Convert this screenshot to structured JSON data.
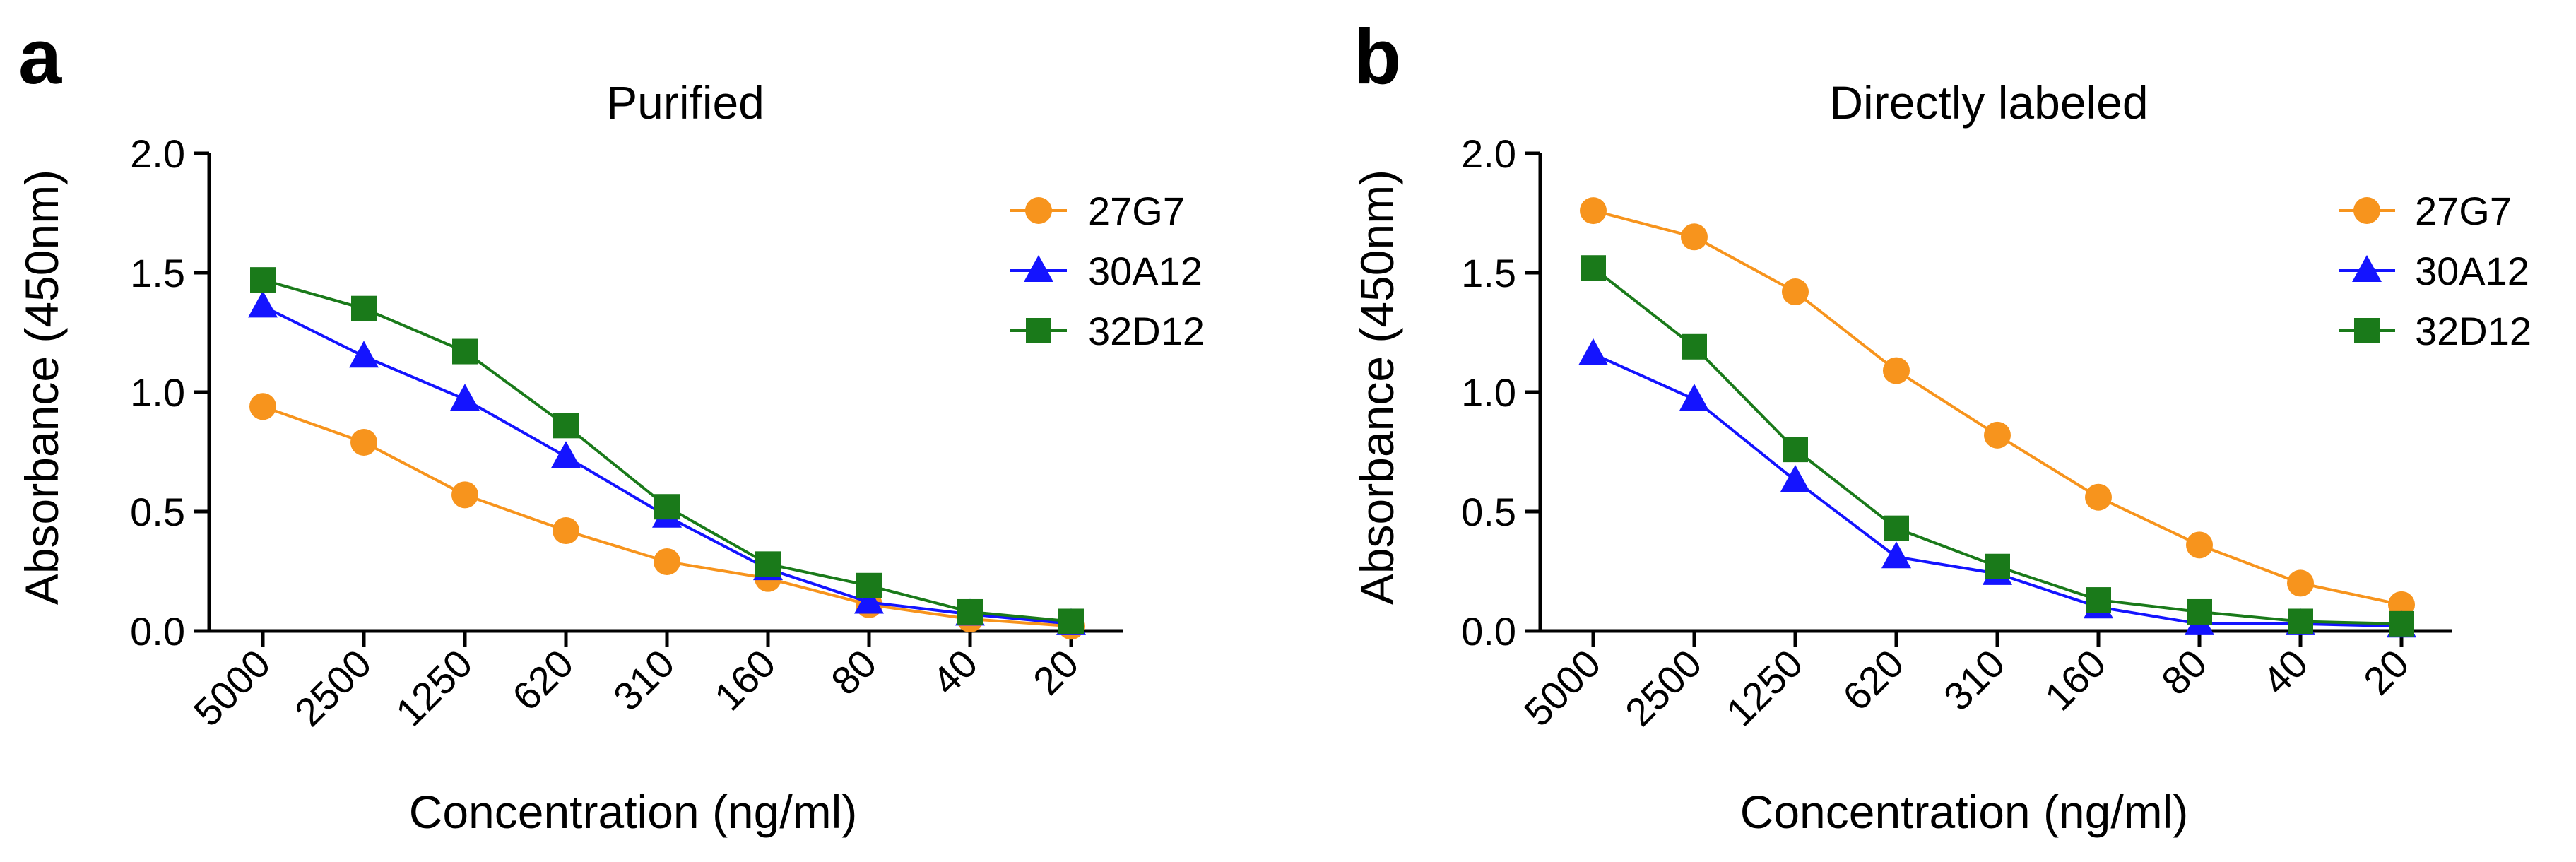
{
  "colors": {
    "27G7": "#f7941d",
    "30A12": "#1414ff",
    "32D12": "#1a7a1a",
    "axis": "#000000"
  },
  "chart_data": [
    {
      "panel": "a",
      "type": "line",
      "title": "Purified",
      "xlabel": "Concentration (ng/ml)",
      "ylabel": "Absorbance (450nm)",
      "categories": [
        "5000",
        "2500",
        "1250",
        "620",
        "310",
        "160",
        "80",
        "40",
        "20"
      ],
      "ylim": [
        0,
        2.0
      ],
      "yticks": [
        "0.0",
        "0.5",
        "1.0",
        "1.5",
        "2.0"
      ],
      "legend_position": "top-right",
      "series": [
        {
          "name": "27G7",
          "marker": "circle",
          "color": "#f7941d",
          "values": [
            0.94,
            0.79,
            0.57,
            0.42,
            0.29,
            0.22,
            0.11,
            0.05,
            0.02
          ]
        },
        {
          "name": "30A12",
          "marker": "triangle",
          "color": "#1414ff",
          "values": [
            1.36,
            1.15,
            0.97,
            0.73,
            0.48,
            0.26,
            0.12,
            0.07,
            0.03
          ]
        },
        {
          "name": "32D12",
          "marker": "square",
          "color": "#1a7a1a",
          "values": [
            1.47,
            1.35,
            1.17,
            0.86,
            0.52,
            0.28,
            0.19,
            0.08,
            0.04
          ]
        }
      ]
    },
    {
      "panel": "b",
      "type": "line",
      "title": "Directly labeled",
      "xlabel": "Concentration (ng/ml)",
      "ylabel": "Absorbance (450nm)",
      "categories": [
        "5000",
        "2500",
        "1250",
        "620",
        "310",
        "160",
        "80",
        "40",
        "20"
      ],
      "ylim": [
        0,
        2.0
      ],
      "yticks": [
        "0.0",
        "0.5",
        "1.0",
        "1.5",
        "2.0"
      ],
      "legend_position": "top-right",
      "series": [
        {
          "name": "27G7",
          "marker": "circle",
          "color": "#f7941d",
          "values": [
            1.76,
            1.65,
            1.42,
            1.09,
            0.82,
            0.56,
            0.36,
            0.2,
            0.11
          ]
        },
        {
          "name": "30A12",
          "marker": "triangle",
          "color": "#1414ff",
          "values": [
            1.16,
            0.97,
            0.63,
            0.31,
            0.24,
            0.1,
            0.03,
            0.03,
            0.02
          ]
        },
        {
          "name": "32D12",
          "marker": "square",
          "color": "#1a7a1a",
          "values": [
            1.52,
            1.19,
            0.76,
            0.43,
            0.27,
            0.13,
            0.08,
            0.04,
            0.03
          ]
        }
      ]
    }
  ]
}
